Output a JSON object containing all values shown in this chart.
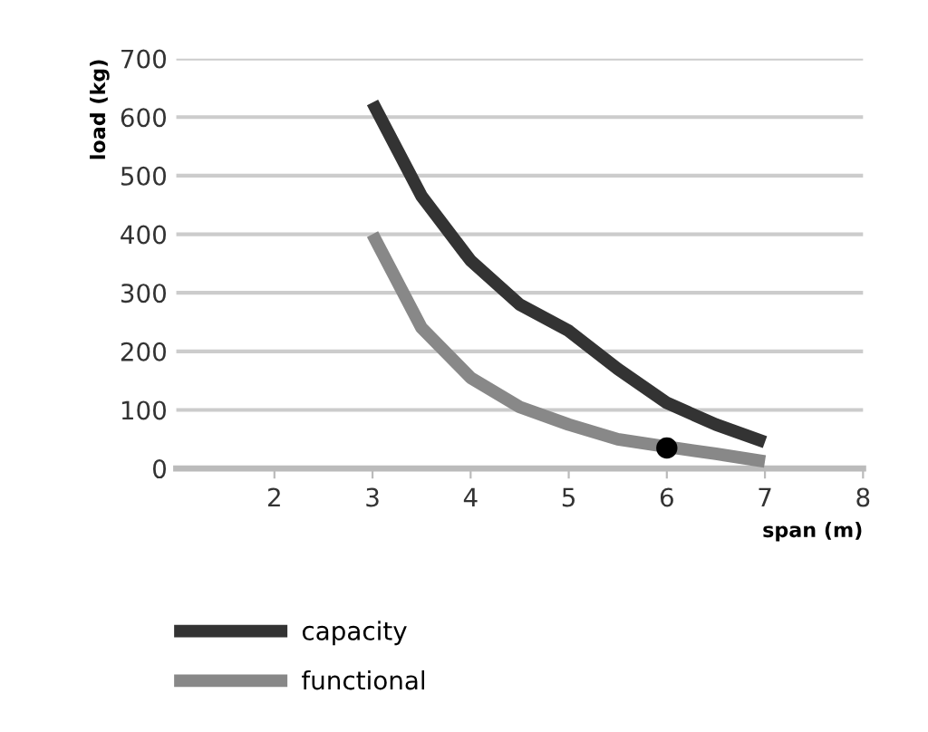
{
  "chart_data": {
    "type": "line",
    "xlabel": "span (m)",
    "ylabel": "load (kg)",
    "x": [
      3,
      3.5,
      4,
      4.5,
      5,
      5.5,
      6,
      6.5,
      7
    ],
    "series": [
      {
        "name": "capacity",
        "color": "#333333",
        "values": [
          625,
          465,
          355,
          280,
          235,
          170,
          112,
          75,
          45
        ]
      },
      {
        "name": "functional",
        "color": "#888888",
        "values": [
          400,
          240,
          155,
          105,
          75,
          50,
          37,
          25,
          12
        ]
      },
      {
        "type": "scatter",
        "color": "#000000",
        "x": [
          6
        ],
        "values": [
          35
        ],
        "marker": "circle"
      }
    ],
    "xlim": [
      1,
      8
    ],
    "xticks": [
      2,
      3,
      4,
      5,
      6,
      7,
      8
    ],
    "ylim": [
      0,
      700
    ],
    "yticks": [
      0,
      100,
      200,
      300,
      400,
      500,
      600,
      700
    ],
    "grid": "y",
    "legend": "bottom",
    "line_style": "solid"
  }
}
